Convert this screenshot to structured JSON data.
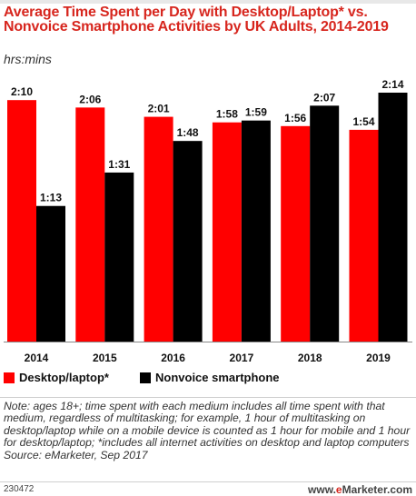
{
  "header": {
    "title": "Average Time Spent per Day with Desktop/Laptop* vs. Nonvoice Smartphone Activities by UK Adults, 2014-2019",
    "subtitle": "hrs:mins"
  },
  "colors": {
    "desktop": "#ff0000",
    "smartphone": "#000000",
    "title": "#d7261e"
  },
  "chart_data": {
    "type": "bar",
    "categories": [
      "2014",
      "2015",
      "2016",
      "2017",
      "2018",
      "2019"
    ],
    "series": [
      {
        "name": "Desktop/laptop*",
        "values": [
          130,
          126,
          121,
          118,
          116,
          114
        ],
        "labels": [
          "2:10",
          "2:06",
          "2:01",
          "1:58",
          "1:56",
          "1:54"
        ]
      },
      {
        "name": "Nonvoice smartphone",
        "values": [
          73,
          91,
          108,
          119,
          127,
          134
        ],
        "labels": [
          "1:13",
          "1:31",
          "1:48",
          "1:59",
          "2:07",
          "2:14"
        ]
      }
    ],
    "ylim": [
      0,
      134
    ],
    "value_units": "minutes",
    "grid": false,
    "legend_position": "bottom"
  },
  "legend": {
    "desktop_label": "Desktop/laptop*",
    "smartphone_label": "Nonvoice smartphone"
  },
  "note": {
    "text": "Note: ages 18+; time spent with each medium includes all time spent with that medium, regardless of multitasking; for example, 1 hour of multitasking on desktop/laptop while on a mobile device is counted as 1 hour for mobile and 1 hour for desktop/laptop; *includes all internet activities on desktop and laptop computers",
    "source": "Source: eMarketer, Sep 2017"
  },
  "footer": {
    "chart_id": "230472",
    "logo_prefix": "www.",
    "logo_e": "e",
    "logo_rest": "Marketer",
    "logo_suffix": ".com"
  }
}
